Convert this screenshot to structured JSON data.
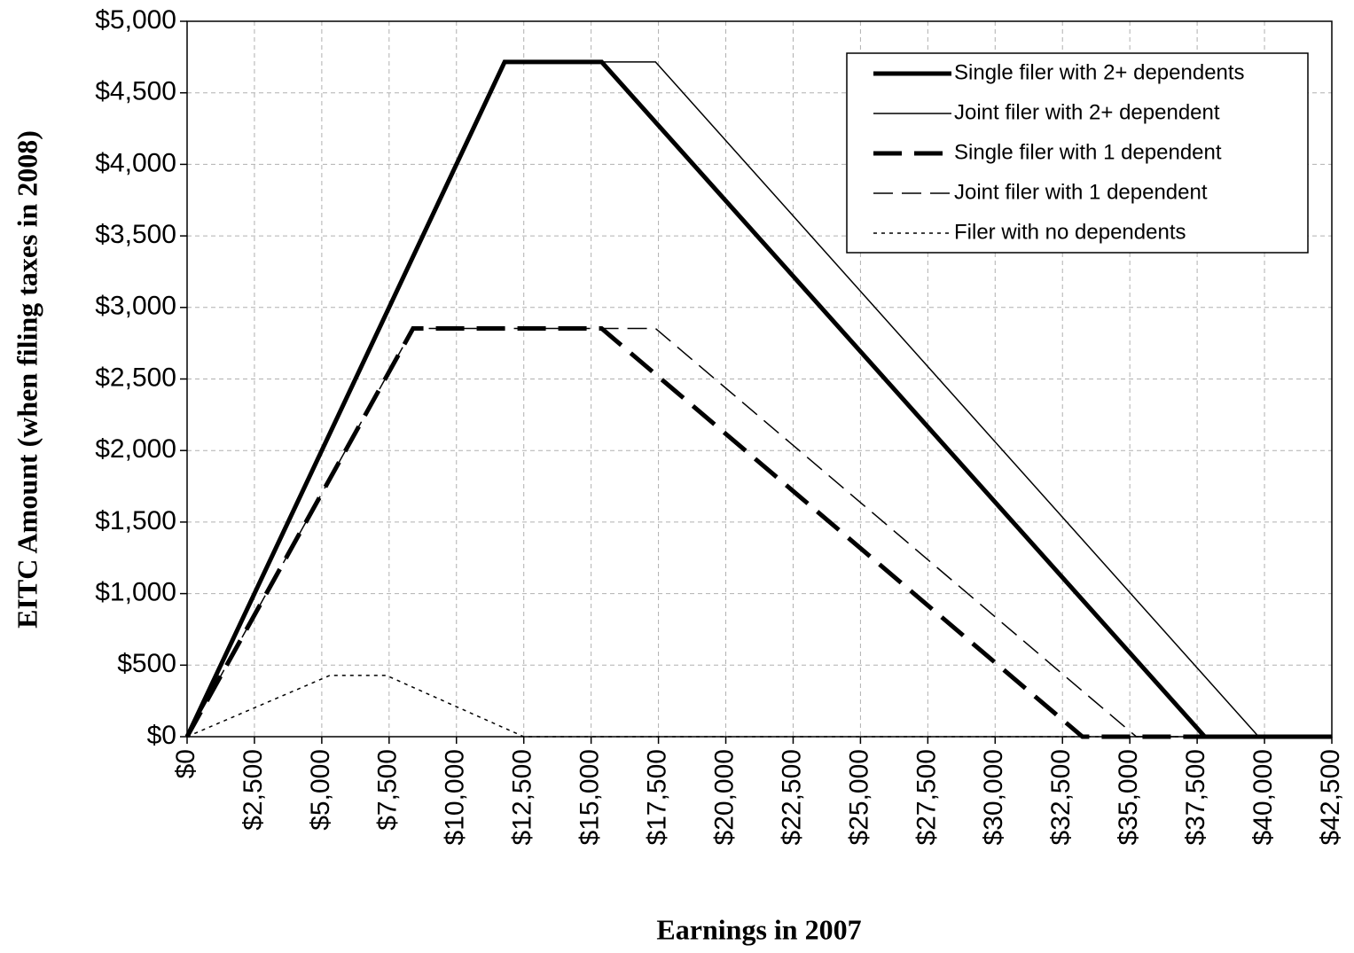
{
  "chart_data": {
    "type": "line",
    "xlabel": "Earnings in 2007",
    "ylabel": "EITC Amount (when filing taxes in 2008)",
    "xlim": [
      0,
      42500
    ],
    "ylim": [
      0,
      5000
    ],
    "xticks": [
      {
        "value": 0,
        "label": "$0"
      },
      {
        "value": 2500,
        "label": "$2,500"
      },
      {
        "value": 5000,
        "label": "$5,000"
      },
      {
        "value": 7500,
        "label": "$7,500"
      },
      {
        "value": 10000,
        "label": "$10,000"
      },
      {
        "value": 12500,
        "label": "$12,500"
      },
      {
        "value": 15000,
        "label": "$15,000"
      },
      {
        "value": 17500,
        "label": "$17,500"
      },
      {
        "value": 20000,
        "label": "$20,000"
      },
      {
        "value": 22500,
        "label": "$22,500"
      },
      {
        "value": 25000,
        "label": "$25,000"
      },
      {
        "value": 27500,
        "label": "$27,500"
      },
      {
        "value": 30000,
        "label": "$30,000"
      },
      {
        "value": 32500,
        "label": "$32,500"
      },
      {
        "value": 35000,
        "label": "$35,000"
      },
      {
        "value": 37500,
        "label": "$37,500"
      },
      {
        "value": 40000,
        "label": "$40,000"
      },
      {
        "value": 42500,
        "label": "$42,500"
      }
    ],
    "yticks": [
      {
        "value": 0,
        "label": "$0"
      },
      {
        "value": 500,
        "label": "$500"
      },
      {
        "value": 1000,
        "label": "$1,000"
      },
      {
        "value": 1500,
        "label": "$1,500"
      },
      {
        "value": 2000,
        "label": "$2,000"
      },
      {
        "value": 2500,
        "label": "$2,500"
      },
      {
        "value": 3000,
        "label": "$3,000"
      },
      {
        "value": 3500,
        "label": "$3,500"
      },
      {
        "value": 4000,
        "label": "$4,000"
      },
      {
        "value": 4500,
        "label": "$4,500"
      },
      {
        "value": 5000,
        "label": "$5,000"
      }
    ],
    "grid": true,
    "legend": "upper right",
    "series": [
      {
        "name": "Single filer with 2+ dependents",
        "color": "#000000",
        "line_width": 5,
        "line_style": "solid",
        "x": [
          0,
          11790,
          15390,
          37783,
          42500
        ],
        "values": [
          0,
          4716,
          4716,
          0,
          0
        ]
      },
      {
        "name": "Joint filer with 2+ dependent",
        "color": "#000000",
        "line_width": 1.5,
        "line_style": "solid",
        "x": [
          0,
          11790,
          17390,
          39783,
          42500
        ],
        "values": [
          0,
          4716,
          4716,
          0,
          0
        ]
      },
      {
        "name": "Single filer with 1 dependent",
        "color": "#000000",
        "line_width": 5,
        "line_style": "dashed",
        "x": [
          0,
          8390,
          15390,
          33241,
          42500
        ],
        "values": [
          0,
          2853,
          2853,
          0,
          0
        ]
      },
      {
        "name": "Joint filer with 1 dependent",
        "color": "#000000",
        "line_width": 1.5,
        "line_style": "dashed",
        "x": [
          0,
          8390,
          17390,
          35241,
          42500
        ],
        "values": [
          0,
          2853,
          2853,
          0,
          0
        ]
      },
      {
        "name": "Filer with no dependents",
        "color": "#000000",
        "line_width": 1.5,
        "line_style": "dotted",
        "x": [
          0,
          5300,
          7400,
          12500,
          42500
        ],
        "values": [
          0,
          428,
          428,
          0,
          0
        ]
      }
    ]
  }
}
